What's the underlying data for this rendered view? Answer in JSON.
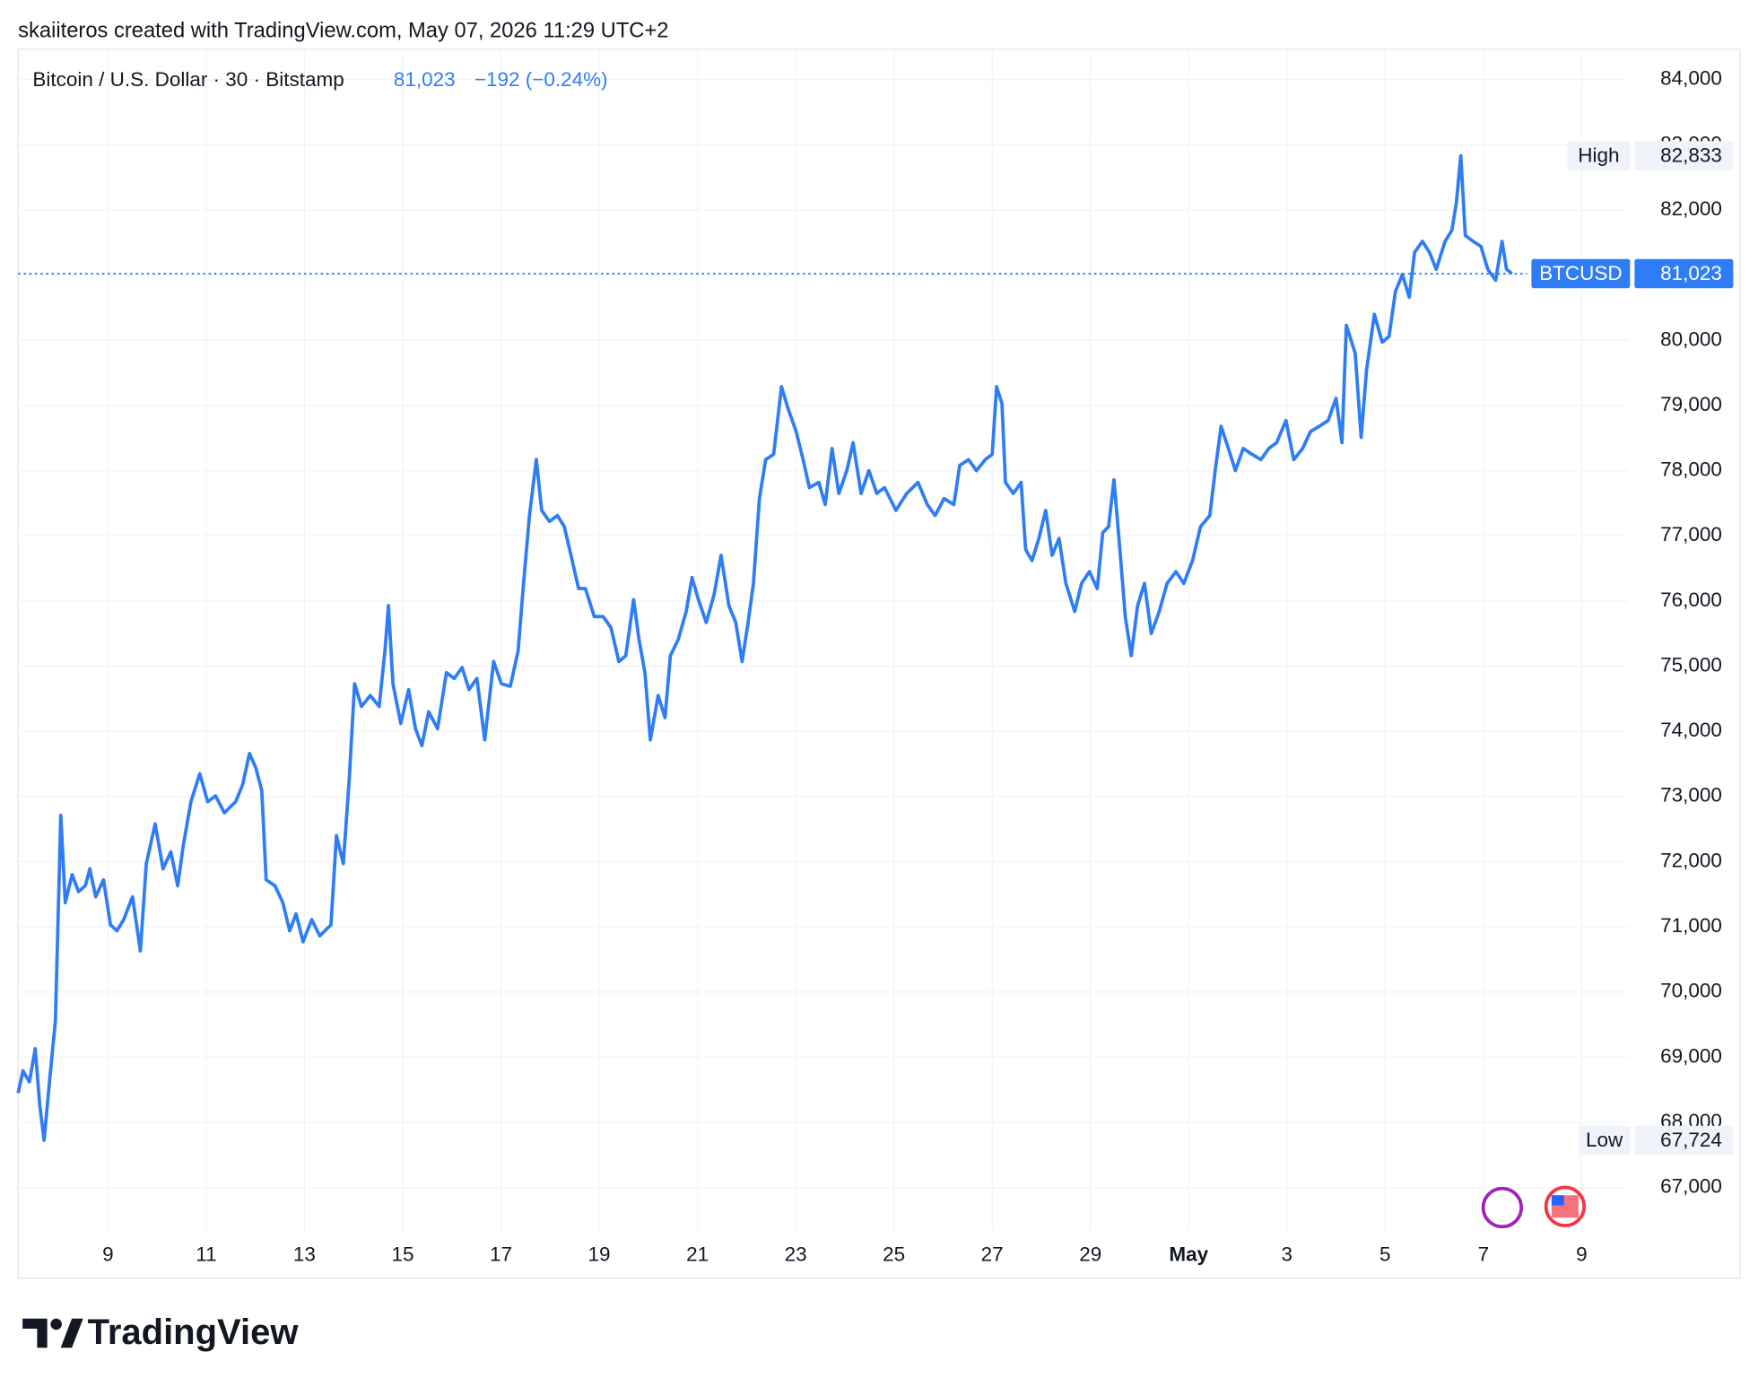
{
  "header": {
    "attribution": "skaiiteros created with TradingView.com, May 07, 2026 11:29 UTC+2",
    "logo": "TradingView"
  },
  "chart_data": {
    "type": "line",
    "symbol": "Bitcoin / U.S. Dollar · 30 · Bitstamp",
    "last_price": "81,023",
    "change": "−192 (−0.24%)",
    "series": [
      {
        "name": "BTCUSD",
        "color": "#2f7df6",
        "x": [
          7.17,
          7.27,
          7.4,
          7.52,
          7.61,
          7.7,
          7.81,
          7.93,
          8.04,
          8.13,
          8.27,
          8.4,
          8.54,
          8.63,
          8.75,
          8.91,
          9.05,
          9.18,
          9.32,
          9.5,
          9.66,
          9.78,
          9.96,
          10.12,
          10.28,
          10.42,
          10.53,
          10.69,
          10.87,
          11.03,
          11.19,
          11.37,
          11.6,
          11.74,
          11.88,
          12.01,
          12.13,
          12.22,
          12.4,
          12.56,
          12.7,
          12.83,
          12.97,
          13.15,
          13.31,
          13.54,
          13.65,
          13.79,
          13.91,
          14.02,
          14.16,
          14.34,
          14.52,
          14.64,
          14.71,
          14.8,
          14.96,
          15.12,
          15.26,
          15.39,
          15.53,
          15.71,
          15.89,
          16.05,
          16.21,
          16.35,
          16.51,
          16.67,
          16.85,
          17.01,
          17.19,
          17.35,
          17.46,
          17.58,
          17.72,
          17.83,
          17.99,
          18.15,
          18.29,
          18.45,
          18.58,
          18.72,
          18.9,
          19.08,
          19.24,
          19.4,
          19.54,
          19.7,
          19.81,
          19.93,
          20.04,
          20.2,
          20.34,
          20.45,
          20.61,
          20.77,
          20.89,
          21.02,
          21.18,
          21.34,
          21.48,
          21.64,
          21.78,
          21.91,
          22.03,
          22.14,
          22.26,
          22.39,
          22.55,
          22.71,
          22.85,
          23.01,
          23.15,
          23.28,
          23.47,
          23.6,
          23.74,
          23.88,
          24.04,
          24.17,
          24.33,
          24.49,
          24.65,
          24.81,
          25.04,
          25.26,
          25.49,
          25.68,
          25.84,
          26.02,
          26.22,
          26.34,
          26.52,
          26.68,
          26.86,
          27.0,
          27.09,
          27.2,
          27.27,
          27.43,
          27.59,
          27.68,
          27.81,
          27.95,
          28.09,
          28.22,
          28.36,
          28.5,
          28.68,
          28.82,
          28.98,
          29.14,
          29.25,
          29.37,
          29.48,
          29.6,
          29.71,
          29.83,
          29.96,
          30.1,
          30.24,
          30.4,
          30.56,
          30.74,
          30.9,
          31.08,
          31.24,
          31.43,
          31.54,
          31.66,
          31.81,
          31.95,
          32.11,
          32.29,
          32.47,
          32.63,
          32.79,
          32.98,
          33.14,
          33.32,
          33.48,
          33.66,
          33.84,
          34.0,
          34.12,
          34.21,
          34.39,
          34.51,
          34.62,
          34.78,
          34.94,
          35.08,
          35.21,
          35.35,
          35.49,
          35.6,
          35.76,
          35.9,
          36.04,
          36.22,
          36.36,
          36.45,
          36.54,
          36.63,
          36.79,
          36.95,
          37.09,
          37.25,
          37.38,
          37.47,
          37.58
        ],
        "values": [
          68450,
          68790,
          68620,
          69130,
          68270,
          67724,
          68620,
          69560,
          72710,
          71370,
          71800,
          71540,
          71630,
          71890,
          71460,
          71720,
          71030,
          70940,
          71110,
          71460,
          70630,
          71970,
          72580,
          71890,
          72150,
          71630,
          72230,
          72920,
          73350,
          72920,
          73010,
          72750,
          72920,
          73180,
          73660,
          73440,
          73090,
          71720,
          71630,
          71370,
          70940,
          71200,
          70770,
          71110,
          70860,
          71030,
          72400,
          71970,
          73260,
          74730,
          74380,
          74550,
          74380,
          75240,
          75930,
          74730,
          74120,
          74640,
          74040,
          73780,
          74300,
          74040,
          74900,
          74810,
          74980,
          74640,
          74810,
          73870,
          75070,
          74730,
          74690,
          75240,
          76270,
          77310,
          78170,
          77390,
          77220,
          77310,
          77140,
          76620,
          76190,
          76190,
          75760,
          75760,
          75590,
          75070,
          75160,
          76020,
          75410,
          74900,
          73870,
          74550,
          74210,
          75160,
          75410,
          75840,
          76360,
          76020,
          75670,
          76100,
          76700,
          75930,
          75670,
          75070,
          75670,
          76270,
          77570,
          78170,
          78250,
          79290,
          78940,
          78600,
          78170,
          77740,
          77820,
          77480,
          78340,
          77650,
          78000,
          78430,
          77650,
          78000,
          77650,
          77740,
          77390,
          77650,
          77820,
          77480,
          77310,
          77570,
          77480,
          78080,
          78170,
          78000,
          78170,
          78250,
          79290,
          79030,
          77820,
          77650,
          77820,
          76790,
          76620,
          76960,
          77390,
          76700,
          76960,
          76270,
          75840,
          76270,
          76450,
          76190,
          77050,
          77140,
          77860,
          76790,
          75760,
          75160,
          75930,
          76270,
          75500,
          75840,
          76270,
          76450,
          76270,
          76620,
          77140,
          77310,
          78000,
          78680,
          78340,
          78000,
          78340,
          78250,
          78170,
          78340,
          78430,
          78770,
          78170,
          78340,
          78600,
          78680,
          78770,
          79110,
          78430,
          80230,
          79800,
          78510,
          79540,
          80400,
          79970,
          80060,
          80750,
          81010,
          80660,
          81350,
          81520,
          81350,
          81090,
          81520,
          81690,
          82120,
          82833,
          81610,
          81520,
          81440,
          81090,
          80920,
          81520,
          81090,
          81023
        ]
      }
    ],
    "xlim": [
      7.17,
      39.94
    ],
    "ylim": [
      66330,
      84465
    ],
    "xticks": [
      9,
      11,
      13,
      15,
      17,
      19,
      21,
      23,
      25,
      27,
      29,
      {
        "value": 31,
        "label": "May"
      },
      {
        "value": 33,
        "label": "3"
      },
      {
        "value": 35,
        "label": "5"
      },
      {
        "value": 37,
        "label": "7"
      },
      {
        "value": 39,
        "label": "9"
      }
    ],
    "yticks": [
      {
        "value": 67000,
        "label": "67,000"
      },
      {
        "value": 68000,
        "label": "68,000"
      },
      {
        "value": 69000,
        "label": "69,000"
      },
      {
        "value": 70000,
        "label": "70,000"
      },
      {
        "value": 71000,
        "label": "71,000"
      },
      {
        "value": 72000,
        "label": "72,000"
      },
      {
        "value": 73000,
        "label": "73,000"
      },
      {
        "value": 74000,
        "label": "74,000"
      },
      {
        "value": 75000,
        "label": "75,000"
      },
      {
        "value": 76000,
        "label": "76,000"
      },
      {
        "value": 77000,
        "label": "77,000"
      },
      {
        "value": 78000,
        "label": "78,000"
      },
      {
        "value": 79000,
        "label": "79,000"
      },
      {
        "value": 80000,
        "label": "80,000"
      },
      {
        "value": 81000,
        "label": "81,000"
      },
      {
        "value": 82000,
        "label": "82,000"
      },
      {
        "value": 83000,
        "label": "83,000"
      },
      {
        "value": 84000,
        "label": "84,000"
      }
    ],
    "grid": true,
    "high": {
      "label": "High",
      "value": 82833,
      "value_label": "82,833"
    },
    "low": {
      "label": "Low",
      "value": 67724,
      "value_label": "67,724"
    },
    "last": {
      "value": 81023,
      "value_label": "81,023"
    }
  }
}
